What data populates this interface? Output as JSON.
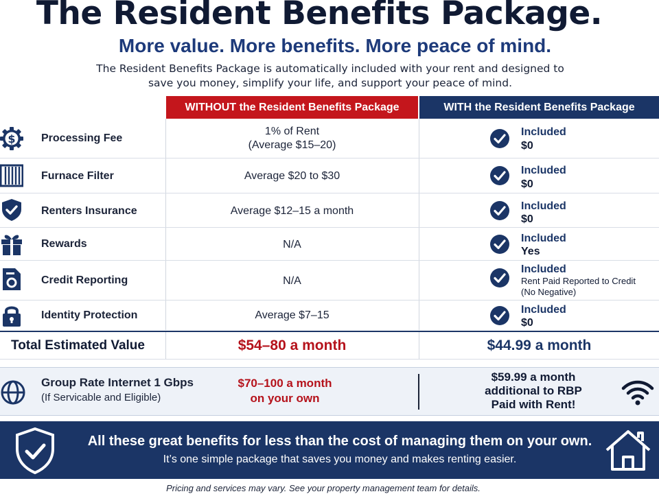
{
  "header": {
    "title": "The Resident Benefits Package.",
    "subtitle": "More value. More benefits. More peace of mind.",
    "intro_line1": "The Resident Benefits Package is automatically included with your rent and designed to",
    "intro_line2": "save you money, simplify your life, and support your peace of mind."
  },
  "columns": {
    "without": "WITHOUT the Resident Benefits Package",
    "with": "WITH the Resident Benefits Package"
  },
  "rows": [
    {
      "icon": "dollar-gear-icon",
      "label": "Processing Fee",
      "without_line1": "1% of Rent",
      "without_line2": "(Average $15–20)",
      "included": "Included",
      "with_value": "$0",
      "with_value2": ""
    },
    {
      "icon": "furnace-filter-icon",
      "label": "Furnace Filter",
      "without_line1": "Average $20 to $30",
      "without_line2": "",
      "included": "Included",
      "with_value": "$0",
      "with_value2": ""
    },
    {
      "icon": "shield-check-icon",
      "label": "Renters Insurance",
      "without_line1": "Average $12–15 a month",
      "without_line2": "",
      "included": "Included",
      "with_value": "$0",
      "with_value2": ""
    },
    {
      "icon": "gift-icon",
      "label": "Rewards",
      "without_line1": "N/A",
      "without_line2": "",
      "included": "Included",
      "with_value": "Yes",
      "with_value2": ""
    },
    {
      "icon": "credit-report-icon",
      "label": "Credit Reporting",
      "without_line1": "N/A",
      "without_line2": "",
      "included": "Included",
      "with_value": "Rent Paid Reported to Credit",
      "with_value2": "(No Negative)"
    },
    {
      "icon": "padlock-icon",
      "label": "Identity Protection",
      "without_line1": "Average $7–15",
      "without_line2": "",
      "included": "Included",
      "with_value": "$0",
      "with_value2": ""
    }
  ],
  "total": {
    "label": "Total Estimated Value",
    "without": "$54–80 a month",
    "with": "$44.99 a month"
  },
  "internet": {
    "label": "Group Rate Internet 1 Gbps",
    "sublabel": "(If Servicable and Eligible)",
    "without_line1": "$70–100 a month",
    "without_line2": "on your own",
    "with_line1": "$59.99 a month",
    "with_line2": "additional to RBP",
    "with_line3": "Paid with Rent!"
  },
  "banner": {
    "headline": "All these great benefits for less than the cost of managing them on your own.",
    "subline": "It’s one simple package that saves you money and makes renting easier."
  },
  "footer": "Pricing and services may vary. See your property management team for details.",
  "colors": {
    "navy": "#1b3566",
    "red": "#c4161c",
    "dark": "#101a33"
  }
}
